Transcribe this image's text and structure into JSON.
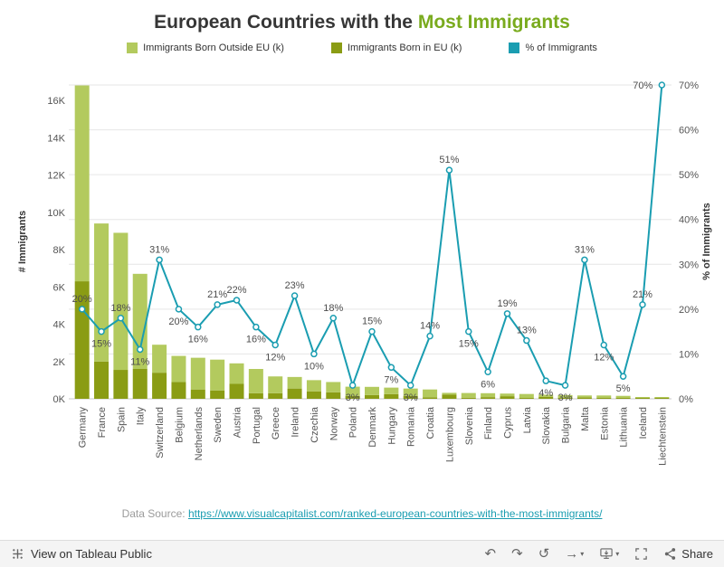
{
  "header": {
    "title_prefix": "European Countries with the ",
    "title_highlight": "Most Immigrants"
  },
  "colors": {
    "bar_outside_eu": "#b3ca5e",
    "bar_in_eu": "#8a9c14",
    "line_percent": "#1a9db1",
    "title_highlight": "#7aab1e",
    "link": "#1a9db1",
    "grid": "#e6e6e6"
  },
  "chart_data": {
    "type": "combo",
    "title": "European Countries with the Most Immigrants",
    "legend_position": "top",
    "grid": "horizontal",
    "categories": [
      "Germany",
      "France",
      "Spain",
      "Italy",
      "Switzerland",
      "Belgium",
      "Netherlands",
      "Sweden",
      "Austria",
      "Portugal",
      "Greece",
      "Ireland",
      "Czechia",
      "Norway",
      "Poland",
      "Denmark",
      "Hungary",
      "Romania",
      "Croatia",
      "Luxembourg",
      "Slovenia",
      "Finland",
      "Cyprus",
      "Latvia",
      "Slovakia",
      "Bulgaria",
      "Malta",
      "Estonia",
      "Lithuania",
      "Iceland",
      "Liechtenstein"
    ],
    "series": [
      {
        "name": "Immigrants Born Outside EU (k)",
        "type": "bar",
        "stack": "top",
        "color": "#b3ca5e",
        "values": [
          10500,
          7400,
          7350,
          5100,
          1500,
          1400,
          1700,
          1650,
          1100,
          1300,
          900,
          620,
          600,
          550,
          500,
          440,
          350,
          400,
          420,
          100,
          250,
          210,
          140,
          210,
          110,
          150,
          110,
          130,
          110,
          40,
          16
        ]
      },
      {
        "name": "Immigrants Born in EU (k)",
        "type": "bar",
        "stack": "bottom",
        "color": "#8a9c14",
        "values": [
          6300,
          2000,
          1550,
          1600,
          1400,
          900,
          500,
          450,
          800,
          300,
          300,
          550,
          400,
          350,
          150,
          200,
          250,
          150,
          80,
          220,
          60,
          90,
          140,
          40,
          110,
          50,
          70,
          30,
          40,
          35,
          14
        ]
      },
      {
        "name": "% of Immigrants",
        "type": "line",
        "axis": "right",
        "color": "#1a9db1",
        "values": [
          20,
          15,
          18,
          11,
          31,
          20,
          16,
          21,
          22,
          16,
          12,
          23,
          10,
          18,
          3,
          15,
          7,
          3,
          14,
          51,
          15,
          6,
          19,
          13,
          4,
          3,
          31,
          12,
          5,
          21,
          70
        ],
        "labels": [
          "20%",
          "15%",
          "18%",
          "11%",
          "31%",
          "20%",
          "16%",
          "21%",
          "22%",
          "16%",
          "12%",
          "23%",
          "10%",
          "18%",
          "3%",
          "15%",
          "7%",
          "3%",
          "14%",
          "51%",
          "15%",
          "6%",
          "19%",
          "13%",
          "4%",
          "3%",
          "31%",
          "12%",
          "5%",
          "21%",
          "70%"
        ],
        "label_pos": [
          "above",
          "below",
          "above",
          "below",
          "above",
          "below",
          "below",
          "above",
          "above",
          "below",
          "below",
          "above",
          "below",
          "above",
          "below",
          "above",
          "below",
          "below",
          "above",
          "above",
          "below",
          "below",
          "above",
          "above",
          "below",
          "below",
          "above",
          "below",
          "below",
          "above",
          "left"
        ]
      }
    ],
    "y_left": {
      "label": "# Immigrants",
      "ticks": [
        "0K",
        "2K",
        "4K",
        "6K",
        "8K",
        "10K",
        "12K",
        "14K",
        "16K"
      ],
      "tick_values": [
        0,
        2000,
        4000,
        6000,
        8000,
        10000,
        12000,
        14000,
        16000
      ],
      "range": [
        0,
        16800
      ]
    },
    "y_right": {
      "label": "% of Immigrants",
      "ticks": [
        "0%",
        "10%",
        "20%",
        "30%",
        "40%",
        "50%",
        "60%",
        "70%"
      ],
      "tick_values": [
        0,
        10,
        20,
        30,
        40,
        50,
        60,
        70
      ],
      "range": [
        0,
        70
      ]
    }
  },
  "footer": {
    "datasource_prefix": "Data Source: ",
    "datasource_url": "https://www.visualcapitalist.com/ranked-european-countries-with-the-most-immigrants/"
  },
  "toolbar": {
    "view_label": "View on Tableau Public",
    "share_label": "Share",
    "icons": {
      "undo": "↶",
      "redo": "↷",
      "replay": "↺",
      "resume": "→",
      "caret": "▾"
    }
  }
}
